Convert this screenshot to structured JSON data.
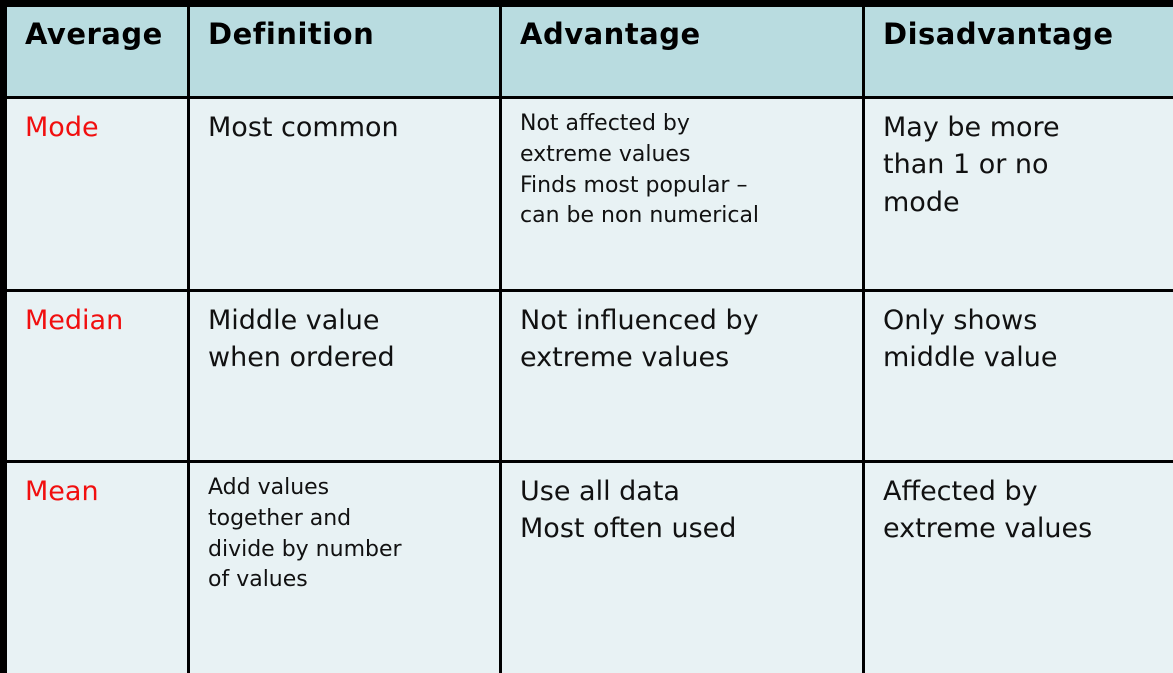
{
  "table": {
    "headers": [
      "Average",
      "Definition",
      "Advantage",
      "Disadvantage"
    ],
    "rows": [
      {
        "label": "Mode",
        "definition": "Most common",
        "advantage": "Not affected by\nextreme values\nFinds most popular –\ncan be non numerical",
        "disadvantage": "May be more\nthan 1 or no\nmode"
      },
      {
        "label": "Median",
        "definition": "Middle value\nwhen ordered",
        "advantage": "Not influenced by\nextreme values",
        "disadvantage": "Only shows\nmiddle value"
      },
      {
        "label": "Mean",
        "definition": "Add values\ntogether and\ndivide by number\nof values",
        "advantage": "Use all data\nMost often used",
        "disadvantage": "Affected by\nextreme values"
      }
    ]
  },
  "colors": {
    "header_background": "#b9dce0",
    "body_background": "#e8f2f4",
    "grid_border": "#000000",
    "row_label_red": "#f10f0f",
    "text": "#111111"
  }
}
